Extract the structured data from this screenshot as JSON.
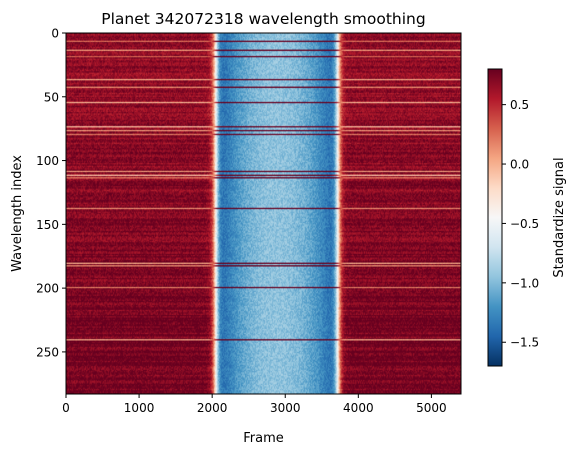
{
  "chart_data": {
    "type": "heatmap",
    "title": "Planet 342072318 wavelength smoothing",
    "xlabel": "Frame",
    "ylabel": "Wavelength index",
    "xlim": [
      0,
      5405
    ],
    "ylim": [
      283,
      0
    ],
    "x_ticks": [
      0,
      1000,
      2000,
      3000,
      4000,
      5000
    ],
    "x_tick_labels": [
      "0",
      "1000",
      "2000",
      "3000",
      "4000",
      "5000"
    ],
    "y_ticks": [
      0,
      50,
      100,
      150,
      200,
      250
    ],
    "y_tick_labels": [
      "0",
      "50",
      "100",
      "150",
      "200",
      "250"
    ],
    "colormap": "RdBu_r",
    "colorbar": {
      "label": "Standardize signal",
      "vmin": -1.7,
      "vmax": 0.8,
      "ticks": [
        0.5,
        0.0,
        -0.5,
        -1.0,
        -1.5
      ],
      "tick_labels": [
        "0.5",
        "0.0",
        "−0.5",
        "−1.0",
        "−1.5"
      ]
    },
    "transit": {
      "ingress_frame": 2050,
      "egress_frame": 3720,
      "ramp_width_frames": 110,
      "out_of_transit_level": 0.65,
      "in_transit_level": -1.25,
      "in_transit_center_level": -0.95,
      "in_transit_edge_level": -1.55
    },
    "bright_rows": [
      {
        "row": 6,
        "level": 0.25
      },
      {
        "row": 13,
        "level": 0.1
      },
      {
        "row": 18,
        "level": 0.3
      },
      {
        "row": 36,
        "level": 0.05
      },
      {
        "row": 42,
        "level": 0.15
      },
      {
        "row": 54,
        "level": 0.0
      },
      {
        "row": 73,
        "level": -0.05
      },
      {
        "row": 76,
        "level": 0.1
      },
      {
        "row": 79,
        "level": 0.2
      },
      {
        "row": 108,
        "level": 0.1
      },
      {
        "row": 111,
        "level": -0.05
      },
      {
        "row": 113,
        "level": 0.2
      },
      {
        "row": 137,
        "level": 0.15
      },
      {
        "row": 180,
        "level": 0.05
      },
      {
        "row": 182,
        "level": 0.15
      },
      {
        "row": 199,
        "level": 0.2
      },
      {
        "row": 240,
        "level": 0.05
      }
    ]
  }
}
